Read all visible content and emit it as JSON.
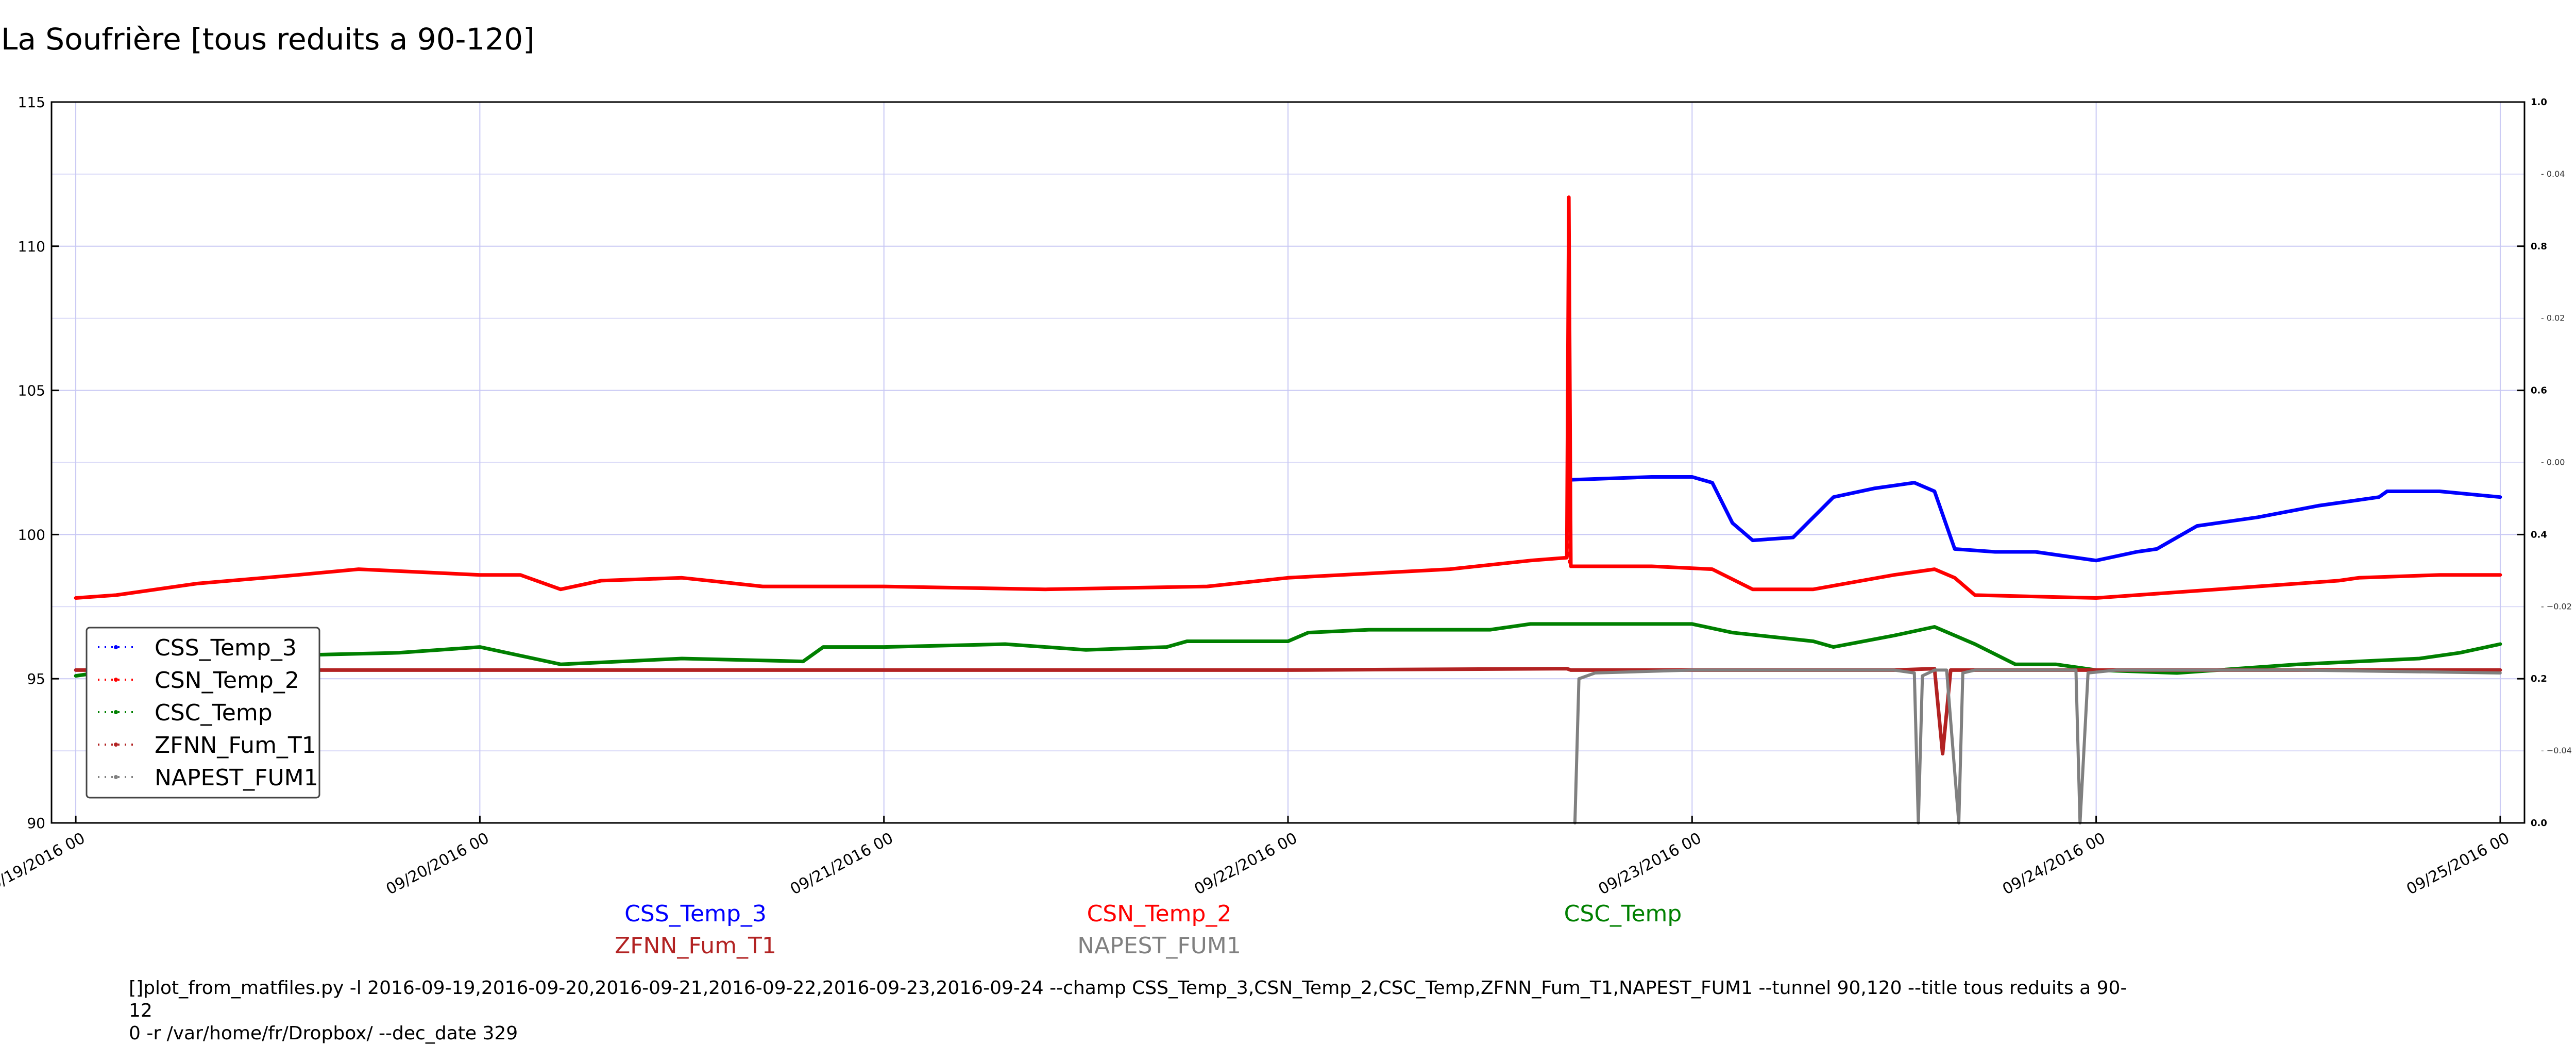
{
  "chart_data": {
    "type": "line",
    "title": "La Soufrière [tous reduits a 90-120]",
    "xlabel": "",
    "ylabel": "",
    "ylim": [
      90,
      115
    ],
    "yticks": [
      "90",
      "95",
      "100",
      "105",
      "110",
      "115"
    ],
    "y2ticks": [
      "0.0",
      "0.2",
      "0.4",
      "0.6",
      "0.8",
      "1.0"
    ],
    "y3ticks": [
      "−0.04",
      "−0.02",
      "0.00",
      "0.02",
      "0.04"
    ],
    "xticks": [
      "09/19/2016 00",
      "09/20/2016 00",
      "09/21/2016 00",
      "09/22/2016 00",
      "09/23/2016 00",
      "09/24/2016 00",
      "09/25/2016 00"
    ],
    "xrange_days": [
      -0.06,
      6.06
    ],
    "grid": true,
    "legend_position": "lower-left",
    "series": [
      {
        "name": "CSS_Temp_3",
        "color": "#0000ff",
        "x": [
          3.7,
          3.9,
          4.0,
          4.05,
          4.1,
          4.15,
          4.25,
          4.35,
          4.45,
          4.55,
          4.6,
          4.65,
          4.75,
          4.85,
          5.0,
          5.1,
          5.15,
          5.25,
          5.4,
          5.55,
          5.7,
          5.72,
          5.85,
          6.0
        ],
        "y": [
          101.9,
          102.0,
          102.0,
          101.8,
          100.4,
          99.8,
          99.9,
          101.3,
          101.6,
          101.8,
          101.5,
          99.5,
          99.4,
          99.4,
          99.1,
          99.4,
          99.5,
          100.3,
          100.6,
          101.0,
          101.3,
          101.5,
          101.5,
          101.3
        ]
      },
      {
        "name": "CSN_Temp_2",
        "color": "#ff0000",
        "x": [
          0.0,
          0.1,
          0.3,
          0.55,
          0.7,
          1.0,
          1.1,
          1.2,
          1.3,
          1.5,
          1.7,
          2.0,
          2.4,
          2.8,
          3.0,
          3.4,
          3.6,
          3.69,
          3.695,
          3.7,
          3.9,
          4.05,
          4.15,
          4.3,
          4.5,
          4.6,
          4.65,
          4.7,
          5.0,
          5.3,
          5.6,
          5.65,
          5.85,
          6.0
        ],
        "y": [
          97.8,
          97.9,
          98.3,
          98.6,
          98.8,
          98.6,
          98.6,
          98.1,
          98.4,
          98.5,
          98.2,
          98.2,
          98.1,
          98.2,
          98.5,
          98.8,
          99.1,
          99.2,
          111.7,
          98.9,
          98.9,
          98.8,
          98.1,
          98.1,
          98.6,
          98.8,
          98.5,
          97.9,
          97.8,
          98.1,
          98.4,
          98.5,
          98.6,
          98.6
        ]
      },
      {
        "name": "CSC_Temp",
        "color": "#008000",
        "x": [
          0.0,
          0.2,
          0.5,
          0.8,
          1.0,
          1.2,
          1.5,
          1.8,
          1.85,
          2.0,
          2.3,
          2.5,
          2.7,
          2.75,
          3.0,
          3.05,
          3.2,
          3.5,
          3.6,
          3.7,
          4.0,
          4.1,
          4.3,
          4.35,
          4.5,
          4.6,
          4.7,
          4.8,
          4.9,
          5.0,
          5.2,
          5.5,
          5.8,
          5.9,
          6.0
        ],
        "y": [
          95.1,
          95.5,
          95.8,
          95.9,
          96.1,
          95.5,
          95.7,
          95.6,
          96.1,
          96.1,
          96.2,
          96.0,
          96.1,
          96.3,
          96.3,
          96.6,
          96.7,
          96.7,
          96.9,
          96.9,
          96.9,
          96.6,
          96.3,
          96.1,
          96.5,
          96.8,
          96.2,
          95.5,
          95.5,
          95.3,
          95.2,
          95.5,
          95.7,
          95.9,
          96.2
        ]
      },
      {
        "name": "ZFNN_Fum_T1",
        "color": "#b22222",
        "x": [
          0.0,
          1.0,
          2.0,
          3.0,
          3.69,
          3.7,
          4.0,
          4.5,
          4.6,
          4.62,
          4.64,
          5.0,
          6.0
        ],
        "y": [
          95.3,
          95.3,
          95.3,
          95.3,
          95.35,
          95.3,
          95.3,
          95.3,
          95.35,
          92.4,
          95.3,
          95.3,
          95.3
        ]
      },
      {
        "name": "NAPEST_FUM1",
        "color": "#808080",
        "x": [
          3.71,
          3.72,
          3.76,
          4.0,
          4.5,
          4.55,
          4.56,
          4.57,
          4.6,
          4.63,
          4.66,
          4.67,
          4.7,
          4.95,
          4.96,
          4.98,
          5.05,
          5.5,
          6.0
        ],
        "y": [
          90.0,
          95.0,
          95.2,
          95.3,
          95.3,
          95.2,
          90.0,
          95.1,
          95.3,
          95.3,
          90.0,
          95.2,
          95.3,
          95.3,
          90.0,
          95.2,
          95.3,
          95.3,
          95.2
        ]
      }
    ]
  },
  "footer": {
    "command": "[]plot_from_matfiles.py -l 2016-09-19,2016-09-20,2016-09-21,2016-09-22,2016-09-23,2016-09-24 --champ CSS_Temp_3,CSN_Temp_2,CSC_Temp,ZFNN_Fum_T1,NAPEST_FUM1 --tunnel 90,120 --title tous reduits a 90-12\n0 -r /var/home/fr/Dropbox/ --dec_date 329"
  }
}
